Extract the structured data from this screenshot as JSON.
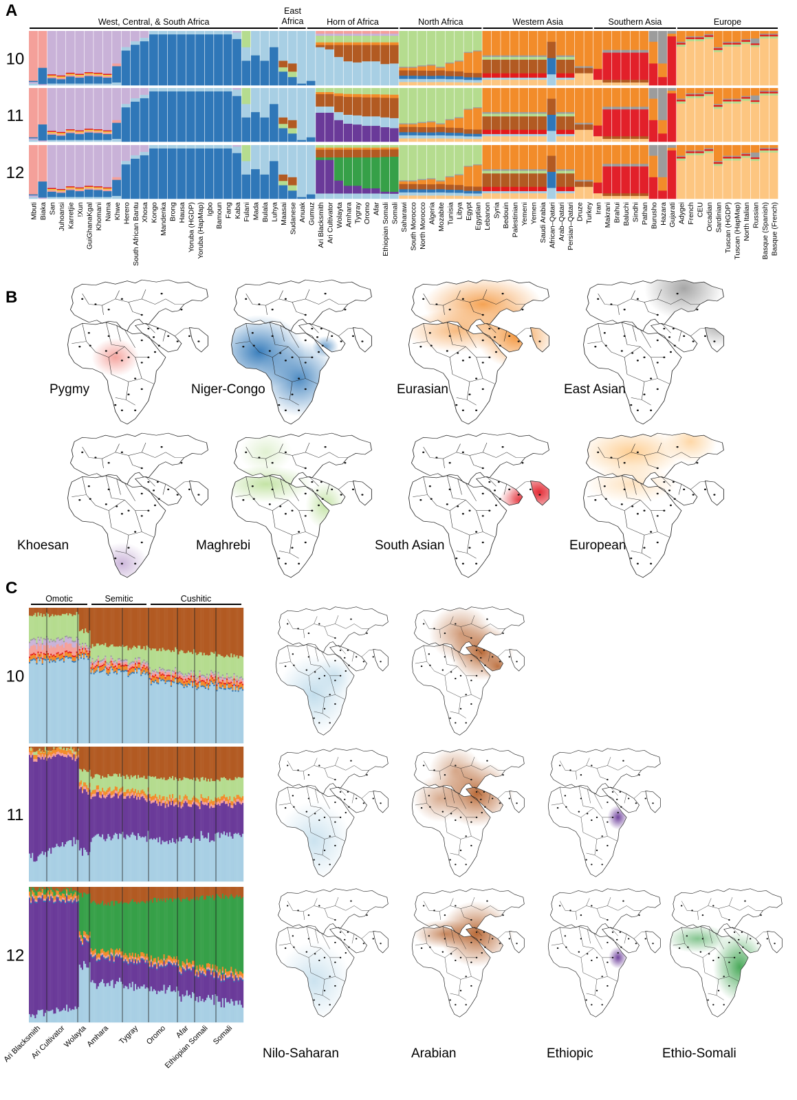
{
  "panels": {
    "a": "A",
    "b": "B",
    "c": "C"
  },
  "colors": {
    "pygmy": "#f4a09a",
    "khoesan": "#c9b2d8",
    "niger_congo": "#2f77b8",
    "nilo_saharan": "#a8cfe4",
    "maghrebi": "#b5dc8f",
    "eurasian": "#f28c2a",
    "arabian": "#b25a22",
    "south_asian": "#e2202a",
    "east_asian": "#9c9c9c",
    "european": "#fdc681",
    "ethiopic": "#6a3a99",
    "ethio_somali": "#36a048",
    "minor_red": "#e31a1c",
    "minor_yellow": "#f0d33a"
  },
  "chart_data": [
    {
      "type": "bar",
      "subtype": "stacked-admixture",
      "rows": [
        "10",
        "11",
        "12"
      ],
      "region_labels": [
        {
          "label": "West, Central, & South Africa"
        },
        {
          "label": "East\nAfrica"
        },
        {
          "label": "Horn of Africa"
        },
        {
          "label": "North Africa"
        },
        {
          "label": "Western Asia"
        },
        {
          "label": "Southern Asia"
        },
        {
          "label": "Europe"
        }
      ],
      "categories": [
        "Mbuti",
        "Biaka",
        "San",
        "Juhoansi",
        "Karretjie",
        "!Xun",
        "GuiGhanaKgal",
        "Khomani",
        "Nama",
        "Khwe",
        "Herero",
        "South African Bantu",
        "Xhosa",
        "Kongo",
        "Mandenka",
        "Brong",
        "Hausa",
        "Yoruba (HGDP)",
        "Yoruba (HapMap)",
        "Igbo",
        "Bamoun",
        "Fang",
        "Kaba",
        "Fulani",
        "Mada",
        "Bulala",
        "Luhya",
        "Maasai",
        "Sudanese",
        "Anuak",
        "Gumuz",
        "Ari Blacksmith",
        "Ari Cultivator",
        "Wolayta",
        "Amhara",
        "Tygray",
        "Oromo",
        "Afar",
        "Ethiopian Somali",
        "Somali",
        "Saharawi",
        "South Morocco",
        "North Morocco",
        "Algeria",
        "Mozabite",
        "Tunisia",
        "Libya",
        "Egypt",
        "Egyptian",
        "Lebanon",
        "Syria",
        "Bedouin",
        "Palestinian",
        "Yemeni",
        "Yemen",
        "Saudi Arabia",
        "African–Qatari",
        "Arab–Qatari",
        "Persian–Qatari",
        "Druze",
        "Turkey",
        "Iran",
        "Makrani",
        "Brahui",
        "Baluchi",
        "Sindhi",
        "Pathan",
        "Burusho",
        "Hazara",
        "Gujarati",
        "Adygei",
        "French",
        "CEU",
        "Orcadian",
        "Sardinian",
        "Tuscan (HGDP)",
        "Tuscan (HapMap)",
        "North Italian",
        "Russian",
        "Basque (Spanish)",
        "Basque (French)"
      ]
    },
    {
      "type": "map-grid",
      "maps": [
        {
          "label": "Pygmy"
        },
        {
          "label": "Niger-Congo"
        },
        {
          "label": "Eurasian"
        },
        {
          "label": "East Asian"
        },
        {
          "label": "Khoesan"
        },
        {
          "label": "Maghrebi"
        },
        {
          "label": "South Asian"
        },
        {
          "label": "European"
        }
      ]
    },
    {
      "type": "bar",
      "subtype": "stacked-admixture",
      "rows": [
        "10",
        "11",
        "12"
      ],
      "group_labels": [
        {
          "label": "Omotic"
        },
        {
          "label": "Semitic"
        },
        {
          "label": "Cushitic"
        }
      ],
      "categories": [
        "Ari Blacksmith",
        "Ari Cultivator",
        "Wolayta",
        "Amhara",
        "Tygray",
        "Oromo",
        "Afar",
        "Ethiopian Somali",
        "Somali"
      ],
      "maps": [
        {
          "label": "Nilo-Saharan"
        },
        {
          "label": "Arabian"
        },
        {
          "label": "Ethiopic"
        },
        {
          "label": "Ethio-Somali"
        }
      ]
    }
  ]
}
